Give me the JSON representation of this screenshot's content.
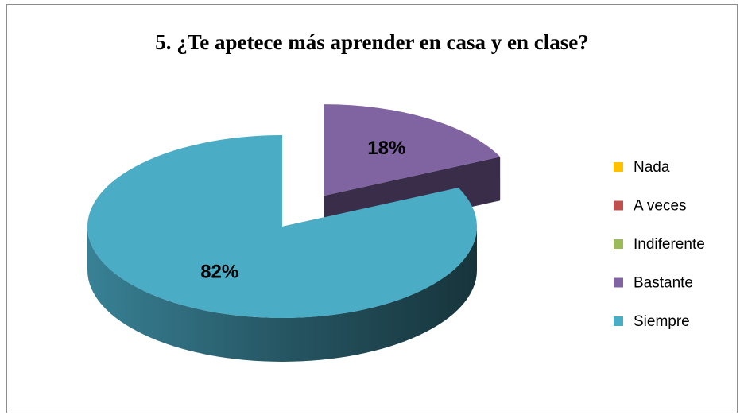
{
  "chart_data": {
    "type": "pie",
    "title": "5. ¿Te apetece más aprender en casa y en clase?",
    "categories": [
      "Nada",
      "A veces",
      "Indiferente",
      "Bastante",
      "Siempre"
    ],
    "values": [
      0,
      0,
      0,
      18,
      82
    ],
    "value_labels": [
      null,
      null,
      null,
      "18%",
      "82%"
    ],
    "colors": [
      "#FFC000",
      "#C0504D",
      "#9BBB59",
      "#8064A2",
      "#4BACC6"
    ],
    "exploded": [
      "Bastante"
    ],
    "legend": "right"
  }
}
